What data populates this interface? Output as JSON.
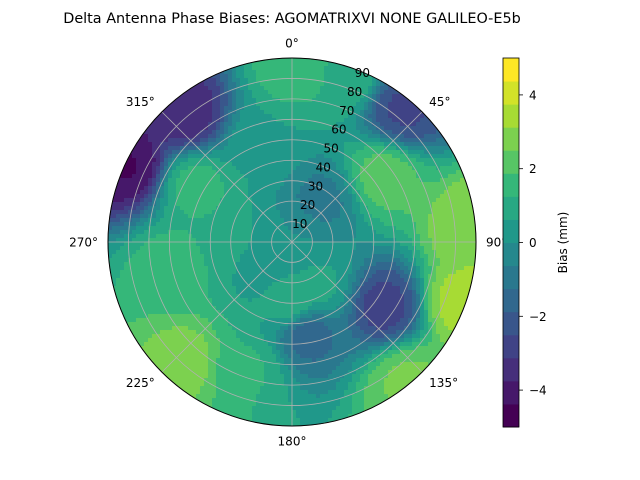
{
  "chart_data": {
    "type": "heatmap",
    "projection": "polar",
    "title": "Delta Antenna Phase Biases: AGOMATRIXVI     NONE GALILEO-E5b",
    "theta_zero": "N",
    "theta_direction": "clockwise",
    "theta_tick_labels": [
      "0°",
      "45°",
      "90°",
      "135°",
      "180°",
      "225°",
      "270°",
      "315°"
    ],
    "theta_ticks_deg": [
      0,
      45,
      90,
      135,
      180,
      225,
      270,
      315
    ],
    "r_tick_labels": [
      "10",
      "20",
      "30",
      "40",
      "50",
      "60",
      "70",
      "80",
      "90"
    ],
    "r_ticks": [
      10,
      20,
      30,
      40,
      50,
      60,
      70,
      80,
      90
    ],
    "r_range": [
      0,
      90
    ],
    "grid": true,
    "colorbar": {
      "label": "Bias (mm)",
      "range": [
        -5,
        5
      ],
      "tick_labels": [
        "−4",
        "−2",
        "0",
        "2",
        "4"
      ],
      "ticks": [
        -4,
        -2,
        0,
        2,
        4
      ],
      "levels": [
        -5,
        -4.375,
        -3.75,
        -3.125,
        -2.5,
        -1.875,
        -1.25,
        -0.625,
        0,
        0.625,
        1.25,
        1.875,
        2.5,
        3.125,
        3.75,
        4.375,
        5
      ],
      "colormap": "viridis"
    },
    "field_features": [
      {
        "az": 0,
        "el": 85,
        "value": 1.6
      },
      {
        "az": 18,
        "el": 85,
        "value": 1.2
      },
      {
        "az": 40,
        "el": 85,
        "value": -2.6
      },
      {
        "az": 55,
        "el": 55,
        "value": 2.2
      },
      {
        "az": 85,
        "el": 88,
        "value": 3.1
      },
      {
        "az": 110,
        "el": 88,
        "value": 3.4
      },
      {
        "az": 140,
        "el": 88,
        "value": 2.6
      },
      {
        "az": 125,
        "el": 55,
        "value": -2.8
      },
      {
        "az": 170,
        "el": 45,
        "value": -1.6
      },
      {
        "az": 200,
        "el": 65,
        "value": 1.3
      },
      {
        "az": 222,
        "el": 78,
        "value": 2.8
      },
      {
        "az": 258,
        "el": 60,
        "value": 1.6
      },
      {
        "az": 300,
        "el": 55,
        "value": 1.5
      },
      {
        "az": 295,
        "el": 88,
        "value": -4.4
      },
      {
        "az": 320,
        "el": 82,
        "value": -3.6
      },
      {
        "az": 345,
        "el": 50,
        "value": 0.6
      },
      {
        "az": 35,
        "el": 25,
        "value": -0.8
      },
      {
        "az": 150,
        "el": 25,
        "value": 0.8
      },
      {
        "az": 235,
        "el": 20,
        "value": 0.4
      },
      {
        "az": 270,
        "el": 35,
        "value": 1.2
      },
      {
        "az": 180,
        "el": 30,
        "value": 1.1
      },
      {
        "az": 0,
        "el": 0,
        "value": 0.0
      }
    ]
  }
}
